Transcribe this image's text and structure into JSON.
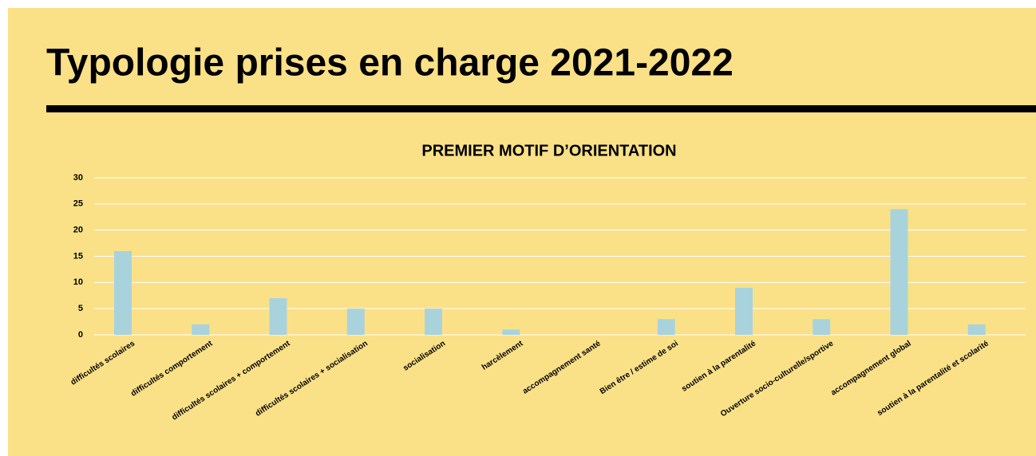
{
  "header": {
    "title": "Typologie prises en charge 2021-2022"
  },
  "chart_data": {
    "type": "bar",
    "title": "PREMIER MOTIF D’ORIENTATION",
    "categories": [
      "difficultés scolaires",
      "difficultés comportement",
      "difficultés scolaires + comportement",
      "difficultés scolaires + socialisation",
      "socialisation",
      "harcèlement",
      "accompagnement santé",
      "Bien être / estime de soi",
      "soutien à la parentalité",
      "Ouverture socio-culturelle/sportive",
      "accompagnement global",
      "soutien à la parentalité et scolarité"
    ],
    "values": [
      16,
      2,
      7,
      5,
      5,
      1,
      0,
      3,
      9,
      3,
      24,
      2
    ],
    "color": "#a8d3dd",
    "ylim": [
      0,
      30
    ],
    "yticks": [
      0,
      5,
      10,
      15,
      20,
      25,
      30
    ],
    "grid": true
  }
}
